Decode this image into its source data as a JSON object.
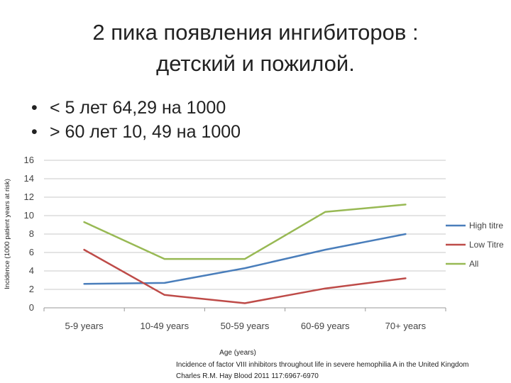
{
  "slide": {
    "title_line1": "2 пика появления ингибиторов :",
    "title_line2": "детский и пожилой.",
    "bullets": [
      "< 5 лет 64,29 на 1000",
      "> 60 лет 10, 49 на 1000"
    ],
    "caption_line1": "Incidence of factor VIII inhibitors throughout life in severe hemophilia A in the United Kingdom",
    "caption_line2": "Charles R.M. Hay Blood 2011 117:6967-6970"
  },
  "chart_data": {
    "type": "line",
    "title": "",
    "xlabel": "Age (years)",
    "ylabel": "Incidence (1000 patient years at risk)",
    "categories": [
      "5-9 years",
      "10-49 years",
      "50-59 years",
      "60-69 years",
      "70+ years"
    ],
    "ylim": [
      0,
      16
    ],
    "yticks": [
      0,
      2,
      4,
      6,
      8,
      10,
      12,
      14,
      16
    ],
    "grid": true,
    "legend": "right",
    "series": [
      {
        "name": "High titre",
        "color": "#4a7ebb",
        "values": [
          2.6,
          2.7,
          4.3,
          6.3,
          8.0
        ]
      },
      {
        "name": "Low Titre",
        "color": "#be4b48",
        "values": [
          6.3,
          1.4,
          0.5,
          2.1,
          3.2
        ]
      },
      {
        "name": "All",
        "color": "#98b954",
        "values": [
          9.3,
          5.3,
          5.3,
          10.4,
          11.2
        ]
      }
    ]
  }
}
